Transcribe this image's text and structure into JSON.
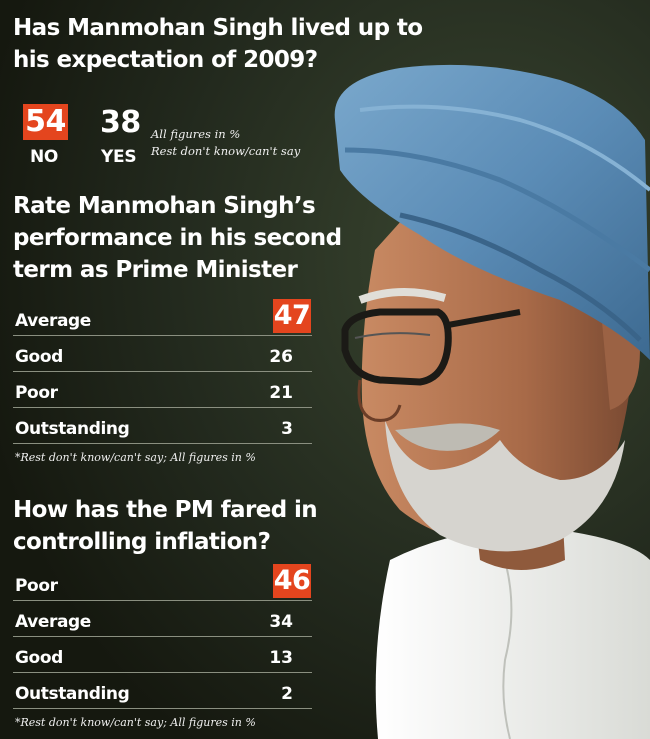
{
  "chart_data": [
    {
      "type": "table",
      "title": "Has Manmohan Singh lived up to his expectation of 2009?",
      "categories": [
        "NO",
        "YES"
      ],
      "values": [
        54,
        38
      ],
      "notes": [
        "All figures in %",
        "Rest don't know/can't say"
      ]
    },
    {
      "type": "table",
      "title": "Rate Manmohan Singh’s performance in his second term as Prime Minister",
      "categories": [
        "Average",
        "Good",
        "Poor",
        "Outstanding"
      ],
      "values": [
        47,
        26,
        21,
        3
      ],
      "footnote": "*Rest don't know/can't say; All figures in %"
    },
    {
      "type": "table",
      "title": "How has the PM fared in controlling inflation?",
      "categories": [
        "Poor",
        "Average",
        "Good",
        "Outstanding"
      ],
      "values": [
        46,
        34,
        13,
        2
      ],
      "footnote": "*Rest don't know/can't say; All figures in %"
    }
  ],
  "q1": {
    "title_line1": "Has Manmohan Singh lived up to",
    "title_line2": "his expectation of 2009?",
    "no_value": "54",
    "no_label": "NO",
    "yes_value": "38",
    "yes_label": "YES",
    "note1": "All figures in %",
    "note2": "Rest don't know/can't say"
  },
  "q2": {
    "title_line1": "Rate Manmohan Singh’s",
    "title_line2": "performance in his second",
    "title_line3": "term as Prime Minister",
    "rows": [
      {
        "label": "Average",
        "value": "47"
      },
      {
        "label": "Good",
        "value": "26"
      },
      {
        "label": "Poor",
        "value": "21"
      },
      {
        "label": "Outstanding",
        "value": "3"
      }
    ],
    "footnote": "*Rest don't know/can't say; All figures in %"
  },
  "q3": {
    "title_line1": "How has the PM fared in",
    "title_line2": "controlling inflation?",
    "rows": [
      {
        "label": "Poor",
        "value": "46"
      },
      {
        "label": "Average",
        "value": "34"
      },
      {
        "label": "Good",
        "value": "13"
      },
      {
        "label": "Outstanding",
        "value": "2"
      }
    ],
    "footnote": "*Rest don't know/can't say; All figures in %"
  },
  "colors": {
    "accent": "#e4451e",
    "background": "#1c1f18",
    "turban": "#5e8fb8",
    "kurta": "#f2f2f0"
  },
  "photo_icon": "portrait-photo"
}
